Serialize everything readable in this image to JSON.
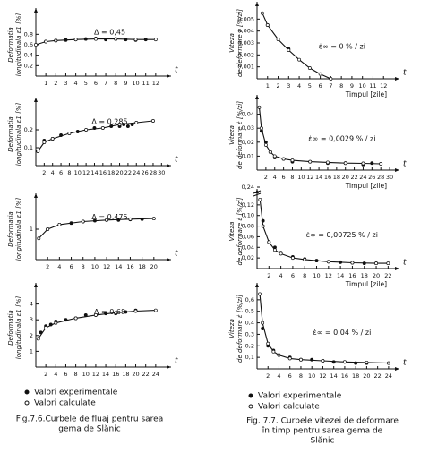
{
  "chart_data": [
    {
      "type": "line",
      "y_label": [
        "Deformatia",
        "longitudinala ε1 [%]"
      ],
      "x_label": "t",
      "annotation": "Δ = 0,45",
      "xlim": [
        0,
        13
      ],
      "ylim": [
        0,
        1.2
      ],
      "xticks": [
        1,
        2,
        3,
        4,
        5,
        6,
        7,
        8,
        9,
        10,
        11,
        12
      ],
      "yticks": [
        {
          "value": 0.2,
          "label": "0,2"
        },
        {
          "value": 0.4,
          "label": "0,4"
        },
        {
          "value": 0.6,
          "label": "0,6"
        },
        {
          "value": 0.8,
          "label": "0,8"
        }
      ],
      "series": [
        {
          "marker": "filled",
          "x": [
            1,
            2,
            3,
            4,
            5,
            6,
            7,
            8,
            9,
            10,
            11
          ],
          "values": [
            0.66,
            0.68,
            0.69,
            0.7,
            0.71,
            0.72,
            0.7,
            0.71,
            0.7,
            0.69,
            0.7
          ]
        },
        {
          "marker": "open",
          "x": [
            0,
            1,
            2,
            4,
            6,
            8,
            10,
            12
          ],
          "values": [
            0.6,
            0.66,
            0.68,
            0.7,
            0.71,
            0.71,
            0.7,
            0.7
          ]
        }
      ]
    },
    {
      "type": "line",
      "y_label": [
        "Deformatia",
        "longitudinala ε1 [%]"
      ],
      "x_label": "t",
      "annotation": "Δ = 0,285",
      "xlim": [
        0,
        31
      ],
      "ylim": [
        0,
        0.35
      ],
      "xticks": [
        2,
        4,
        6,
        8,
        10,
        12,
        14,
        16,
        18,
        20,
        22,
        24,
        26,
        28,
        30
      ],
      "yticks": [
        {
          "value": 0.1,
          "label": "0,1"
        },
        {
          "value": 0.2,
          "label": "0,2"
        }
      ],
      "series": [
        {
          "marker": "filled",
          "x": [
            2,
            4,
            6,
            10,
            14,
            18,
            20,
            21,
            22,
            23
          ],
          "values": [
            0.14,
            0.15,
            0.17,
            0.19,
            0.21,
            0.22,
            0.22,
            0.23,
            0.22,
            0.23
          ]
        },
        {
          "marker": "open",
          "x": [
            0.5,
            2,
            4,
            8,
            12,
            16,
            20,
            24,
            28
          ],
          "values": [
            0.08,
            0.13,
            0.15,
            0.18,
            0.2,
            0.21,
            0.23,
            0.24,
            0.25
          ]
        }
      ]
    },
    {
      "type": "line",
      "y_label": [
        "Deformatia",
        "longitudinala ε1 [%]"
      ],
      "x_label": "t",
      "annotation": "Δ = 0,475",
      "xlim": [
        0,
        22
      ],
      "ylim": [
        0,
        2
      ],
      "xticks": [
        2,
        4,
        6,
        8,
        10,
        12,
        14,
        16,
        18,
        20
      ],
      "yticks": [
        1
      ],
      "series": [
        {
          "marker": "filled",
          "x": [
            2,
            4,
            6,
            8,
            10,
            12,
            14,
            16,
            18
          ],
          "values": [
            1.0,
            1.15,
            1.2,
            1.25,
            1.28,
            1.3,
            1.3,
            1.32,
            1.33
          ]
        },
        {
          "marker": "open",
          "x": [
            0.5,
            2,
            4,
            8,
            12,
            16,
            20
          ],
          "values": [
            0.7,
            1.0,
            1.15,
            1.25,
            1.3,
            1.33,
            1.35
          ]
        }
      ]
    },
    {
      "type": "line",
      "y_label": [
        "Deformatia",
        "longitudinala ε1 [%]"
      ],
      "x_label": "t",
      "annotation": "Δ = 0,68",
      "xlim": [
        0,
        26
      ],
      "ylim": [
        0,
        5
      ],
      "xticks": [
        2,
        4,
        6,
        8,
        10,
        12,
        14,
        16,
        18,
        20,
        22,
        24
      ],
      "yticks": [
        1,
        2,
        3,
        4
      ],
      "series": [
        {
          "marker": "filled",
          "x": [
            1,
            2,
            3,
            4,
            6,
            8,
            10,
            12,
            14,
            16,
            18,
            20
          ],
          "values": [
            2.2,
            2.6,
            2.7,
            2.9,
            3.0,
            3.1,
            3.3,
            3.3,
            3.4,
            3.4,
            3.5,
            3.6
          ]
        },
        {
          "marker": "open",
          "x": [
            0.5,
            2,
            4,
            8,
            12,
            16,
            20,
            24
          ],
          "values": [
            1.8,
            2.5,
            2.8,
            3.1,
            3.3,
            3.45,
            3.55,
            3.6
          ]
        }
      ]
    },
    {
      "type": "line",
      "y_label": [
        "Viteza",
        "de deformare ε̇ [%/zi]"
      ],
      "x_label": "t",
      "x_title": "Timpul [zile]",
      "annotation": "ε̇∞ = 0 % / zi",
      "xlim": [
        0,
        13
      ],
      "ylim": [
        0,
        0.006
      ],
      "xticks": [
        1,
        2,
        3,
        4,
        5,
        6,
        7,
        8,
        9,
        10,
        11,
        12
      ],
      "yticks": [
        {
          "value": 0.001,
          "label": "0,001"
        },
        {
          "value": 0.002,
          "label": "0,002"
        },
        {
          "value": 0.003,
          "label": "0,003"
        },
        {
          "value": 0.004,
          "label": "0,004"
        },
        {
          "value": 0.005,
          "label": "0,005"
        }
      ],
      "series": [
        {
          "marker": "filled",
          "x": [
            1,
            3
          ],
          "values": [
            0.0045,
            0.0025
          ]
        },
        {
          "marker": "open",
          "x": [
            0.5,
            1,
            2,
            3,
            4,
            5,
            6,
            7
          ],
          "values": [
            0.0055,
            0.0045,
            0.0033,
            0.0024,
            0.0016,
            0.0009,
            0.0004,
            0
          ]
        }
      ]
    },
    {
      "type": "line",
      "y_label": [
        "Viteza",
        "de deformare ε̇ [%/zi]"
      ],
      "x_label": "t",
      "x_title": "Timpul [zile]",
      "annotation": "ε̇∞ = 0,0029 % / zi",
      "xlim": [
        0,
        31
      ],
      "ylim": [
        0,
        0.05
      ],
      "xticks": [
        2,
        4,
        6,
        8,
        10,
        12,
        14,
        16,
        18,
        20,
        22,
        24,
        26,
        28,
        30
      ],
      "yticks": [
        {
          "value": 0.01,
          "label": "0,01"
        },
        {
          "value": 0.02,
          "label": "0,02"
        },
        {
          "value": 0.03,
          "label": "0,03"
        },
        {
          "value": 0.04,
          "label": "0,04"
        }
      ],
      "series": [
        {
          "marker": "filled",
          "x": [
            1,
            2,
            3,
            4,
            6,
            8,
            12,
            16,
            20,
            24,
            26
          ],
          "values": [
            0.028,
            0.02,
            0.013,
            0.009,
            0.008,
            0.006,
            0.006,
            0.005,
            0.005,
            0.004,
            0.005
          ]
        },
        {
          "marker": "open",
          "x": [
            0.5,
            1,
            2,
            3,
            4,
            6,
            8,
            12,
            16,
            20,
            24,
            28
          ],
          "values": [
            0.045,
            0.03,
            0.018,
            0.013,
            0.01,
            0.008,
            0.007,
            0.006,
            0.0055,
            0.005,
            0.0048,
            0.0045
          ]
        }
      ]
    },
    {
      "type": "line",
      "y_label": [
        "Viteza",
        "de deformare ε̇ [%/zi]"
      ],
      "x_label": "t",
      "x_title": "Timpul [zile]",
      "annotation": "ε̇∞ = 0,00725 % / zi",
      "xlim": [
        0,
        23
      ],
      "ylim": [
        0,
        0.14
      ],
      "xticks": [
        2,
        4,
        6,
        8,
        10,
        12,
        14,
        16,
        18,
        20,
        22
      ],
      "yticks": [
        {
          "value": 0.02,
          "label": "0,02"
        },
        {
          "value": 0.04,
          "label": "0,04"
        },
        {
          "value": 0.06,
          "label": "0,06"
        },
        {
          "value": 0.08,
          "label": "0,08"
        },
        {
          "value": 0.1,
          "label": "0,10"
        },
        {
          "value": 0.12,
          "label": "0,12"
        }
      ],
      "break_tick": {
        "value": 0.24,
        "label": "0,24"
      },
      "series": [
        {
          "marker": "filled",
          "x": [
            1,
            2,
            3,
            4,
            6,
            8,
            10,
            12,
            14,
            16,
            18,
            20
          ],
          "values": [
            0.09,
            0.05,
            0.04,
            0.03,
            0.022,
            0.018,
            0.015,
            0.013,
            0.012,
            0.011,
            0.01,
            0.01
          ]
        },
        {
          "marker": "open",
          "x": [
            0.5,
            1,
            2,
            3,
            4,
            6,
            8,
            12,
            16,
            20,
            22
          ],
          "values": [
            0.13,
            0.08,
            0.05,
            0.035,
            0.028,
            0.02,
            0.017,
            0.013,
            0.011,
            0.01,
            0.01
          ]
        }
      ]
    },
    {
      "type": "line",
      "y_label": [
        "Viteza",
        "de deformare ε̇ [%/zi]"
      ],
      "x_label": "t",
      "annotation": "ε̇∞ = 0,04 % / zi",
      "xlim": [
        0,
        25
      ],
      "ylim": [
        0,
        0.7
      ],
      "xticks": [
        2,
        4,
        6,
        8,
        10,
        12,
        14,
        16,
        18,
        20,
        22,
        24
      ],
      "yticks": [
        {
          "value": 0.1,
          "label": "0,1"
        },
        {
          "value": 0.2,
          "label": "0,2"
        },
        {
          "value": 0.3,
          "label": "0,3"
        },
        {
          "value": 0.4,
          "label": "0,4"
        },
        {
          "value": 0.5,
          "label": "0,5"
        },
        {
          "value": 0.6,
          "label": "0,6"
        }
      ],
      "series": [
        {
          "marker": "filled",
          "x": [
            1,
            2,
            3,
            4,
            6,
            8,
            10,
            12,
            14,
            16,
            18,
            20
          ],
          "values": [
            0.35,
            0.2,
            0.16,
            0.12,
            0.1,
            0.08,
            0.08,
            0.07,
            0.06,
            0.06,
            0.05,
            0.05
          ]
        },
        {
          "marker": "open",
          "x": [
            0.5,
            1,
            2,
            3,
            4,
            6,
            8,
            12,
            16,
            20,
            24
          ],
          "values": [
            0.65,
            0.4,
            0.22,
            0.15,
            0.12,
            0.09,
            0.08,
            0.07,
            0.06,
            0.055,
            0.05
          ]
        }
      ]
    }
  ],
  "legend": [
    "Valori experimentale",
    "Valori calculate"
  ],
  "captions": [
    [
      "Fig.7.6.Curbele de fluaj pentru sarea",
      "gema de Slănic"
    ],
    [
      "Fig. 7.7. Curbele vitezei de deformare",
      "în timp pentru sarea gema de",
      "Slănic"
    ]
  ]
}
